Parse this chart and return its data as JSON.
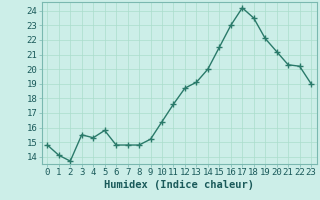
{
  "x": [
    0,
    1,
    2,
    3,
    4,
    5,
    6,
    7,
    8,
    9,
    10,
    11,
    12,
    13,
    14,
    15,
    16,
    17,
    18,
    19,
    20,
    21,
    22,
    23
  ],
  "y": [
    14.8,
    14.1,
    13.7,
    15.5,
    15.3,
    15.8,
    14.8,
    14.8,
    14.8,
    15.2,
    16.4,
    17.6,
    18.7,
    19.1,
    20.0,
    21.5,
    23.0,
    24.2,
    23.5,
    22.1,
    21.2,
    20.3,
    20.2,
    19.0
  ],
  "line_color": "#2a7a6a",
  "marker": "+",
  "markersize": 4,
  "markeredgewidth": 1.0,
  "linewidth": 1.0,
  "bg_color": "#cceee8",
  "grid_color": "#aaddcc",
  "xlabel": "Humidex (Indice chaleur)",
  "ylim": [
    13.5,
    24.6
  ],
  "yticks": [
    14,
    15,
    16,
    17,
    18,
    19,
    20,
    21,
    22,
    23,
    24
  ],
  "xticks": [
    0,
    1,
    2,
    3,
    4,
    5,
    6,
    7,
    8,
    9,
    10,
    11,
    12,
    13,
    14,
    15,
    16,
    17,
    18,
    19,
    20,
    21,
    22,
    23
  ],
  "xlabel_fontsize": 7.5,
  "tick_fontsize": 6.5
}
